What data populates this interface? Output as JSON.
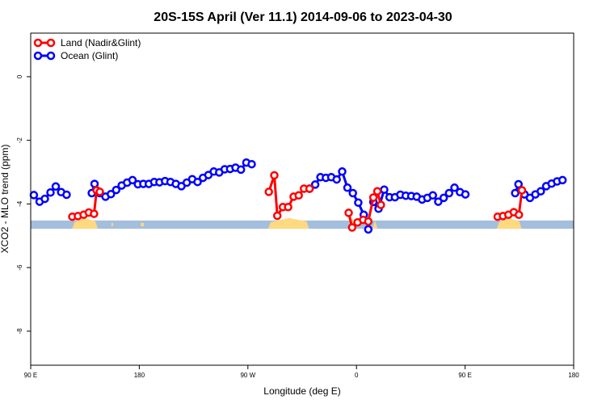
{
  "chart_data": {
    "type": "line",
    "title": "20S-15S April (Ver 11.1)   2014-09-06 to 2023-04-30",
    "xlabel": "Longitude (deg E)",
    "ylabel": "XCO2 - MLO trend (ppm)",
    "x_axis": {
      "range": [
        90,
        450
      ],
      "ticks": [
        90,
        162,
        234,
        306,
        378,
        450
      ],
      "tick_labels": [
        "90 E",
        "180",
        "90 W",
        "0",
        "90 E",
        "180"
      ]
    },
    "y_axis": {
      "range": [
        -9.07,
        1.37
      ],
      "ticks": [
        0,
        -2,
        -4,
        -6,
        -8
      ],
      "tick_labels": [
        "0",
        "-2",
        "-4",
        "-6",
        "-8"
      ]
    },
    "legend": {
      "position": "top-left",
      "entries": [
        {
          "label": "Land (Nadir&Glint)",
          "color": "#ff0000"
        },
        {
          "label": "Ocean (Glint)",
          "color": "#0000ff"
        }
      ]
    },
    "series": [
      {
        "name": "Land (Nadir&Glint)",
        "color": "#ff0000",
        "segments": [
          [
            [
              117.6,
              -4.4
            ],
            [
              121.3,
              -4.38
            ],
            [
              125.1,
              -4.34
            ],
            [
              128.5,
              -4.27
            ],
            [
              132.0,
              -4.31
            ],
            [
              133.7,
              -3.57
            ],
            [
              135.8,
              -3.62
            ]
          ],
          [
            [
              247.9,
              -3.62
            ],
            [
              251.5,
              -3.1
            ],
            [
              253.5,
              -4.37
            ],
            [
              257.2,
              -4.1
            ],
            [
              260.7,
              -4.1
            ],
            [
              264.3,
              -3.77
            ],
            [
              267.7,
              -3.73
            ],
            [
              271.2,
              -3.52
            ],
            [
              274.9,
              -3.52
            ]
          ],
          [
            [
              300.8,
              -4.28
            ],
            [
              303.1,
              -4.74
            ],
            [
              306.7,
              -4.58
            ],
            [
              310.4,
              -4.5
            ],
            [
              313.8,
              -4.55
            ],
            [
              317.2,
              -3.8
            ],
            [
              319.8,
              -3.6
            ],
            [
              322.2,
              -4.03
            ]
          ],
          [
            [
              399.6,
              -4.4
            ],
            [
              403.1,
              -4.38
            ],
            [
              406.7,
              -4.34
            ],
            [
              410.3,
              -4.26
            ],
            [
              413.7,
              -4.34
            ],
            [
              415.7,
              -3.57
            ]
          ]
        ]
      },
      {
        "name": "Ocean (Glint)",
        "color": "#0000ff",
        "segments": [
          [
            [
              92.1,
              -3.72
            ],
            [
              95.9,
              -3.93
            ],
            [
              99.4,
              -3.84
            ],
            [
              103.1,
              -3.64
            ],
            [
              106.6,
              -3.45
            ],
            [
              110.2,
              -3.63
            ],
            [
              113.8,
              -3.71
            ]
          ],
          [
            [
              130.5,
              -3.66
            ],
            [
              132.3,
              -3.37
            ],
            [
              135.8,
              -3.66
            ],
            [
              139.6,
              -3.77
            ],
            [
              143.2,
              -3.69
            ],
            [
              146.7,
              -3.56
            ],
            [
              150.3,
              -3.42
            ],
            [
              153.9,
              -3.33
            ],
            [
              157.5,
              -3.25
            ],
            [
              161.1,
              -3.38
            ],
            [
              164.7,
              -3.37
            ],
            [
              168.3,
              -3.37
            ],
            [
              171.9,
              -3.31
            ],
            [
              175.4,
              -3.32
            ],
            [
              179.1,
              -3.28
            ],
            [
              182.7,
              -3.31
            ],
            [
              186.2,
              -3.37
            ],
            [
              189.9,
              -3.44
            ],
            [
              193.5,
              -3.33
            ],
            [
              197.1,
              -3.22
            ],
            [
              200.6,
              -3.31
            ],
            [
              204.2,
              -3.18
            ],
            [
              207.8,
              -3.09
            ],
            [
              211.4,
              -2.98
            ],
            [
              215.0,
              -3.01
            ],
            [
              218.6,
              -2.91
            ],
            [
              222.2,
              -2.9
            ],
            [
              225.8,
              -2.86
            ],
            [
              229.4,
              -2.92
            ],
            [
              233.0,
              -2.7
            ],
            [
              236.5,
              -2.75
            ]
          ],
          [
            [
              274.9,
              -3.52
            ],
            [
              278.6,
              -3.39
            ],
            [
              282.1,
              -3.16
            ],
            [
              285.7,
              -3.18
            ],
            [
              289.3,
              -3.16
            ],
            [
              292.9,
              -3.23
            ],
            [
              296.5,
              -2.98
            ],
            [
              300.0,
              -3.49
            ],
            [
              303.6,
              -3.66
            ],
            [
              307.2,
              -3.96
            ],
            [
              310.8,
              -4.34
            ]
          ],
          [
            [
              317.2,
              -3.94
            ],
            [
              320.6,
              -4.15
            ],
            [
              324.4,
              -3.55
            ],
            [
              327.9,
              -3.79
            ],
            [
              331.5,
              -3.79
            ],
            [
              335.1,
              -3.71
            ],
            [
              338.7,
              -3.74
            ],
            [
              342.3,
              -3.75
            ],
            [
              345.9,
              -3.77
            ],
            [
              349.5,
              -3.86
            ],
            [
              353.0,
              -3.81
            ],
            [
              356.6,
              -3.73
            ],
            [
              360.2,
              -3.93
            ],
            [
              363.8,
              -3.81
            ],
            [
              367.4,
              -3.66
            ],
            [
              371.0,
              -3.49
            ],
            [
              374.6,
              -3.63
            ],
            [
              378.2,
              -3.7
            ]
          ],
          [
            [
              313.8,
              -4.8
            ]
          ],
          [
            [
              411.2,
              -3.66
            ],
            [
              413.4,
              -3.38
            ],
            [
              417.4,
              -3.7
            ],
            [
              421.0,
              -3.81
            ],
            [
              424.6,
              -3.7
            ],
            [
              428.2,
              -3.6
            ],
            [
              431.8,
              -3.44
            ],
            [
              435.4,
              -3.36
            ],
            [
              439.0,
              -3.29
            ],
            [
              442.6,
              -3.25
            ]
          ]
        ]
      }
    ],
    "coast_strip": {
      "y_range": [
        -4.52,
        -4.78
      ],
      "ocean_color": "#a4bedd",
      "land_color": "#ffd980",
      "land_spans": [
        [
          117.5,
          134.5
        ],
        [
          247.5,
          274.5
        ],
        [
          300.5,
          306.0
        ],
        [
          316.5,
          320.0
        ],
        [
          399.0,
          415.5
        ]
      ],
      "small_land_spans": [
        [
          163.0,
          165.0
        ],
        [
          143.5,
          144.5
        ]
      ]
    },
    "grid": false
  }
}
